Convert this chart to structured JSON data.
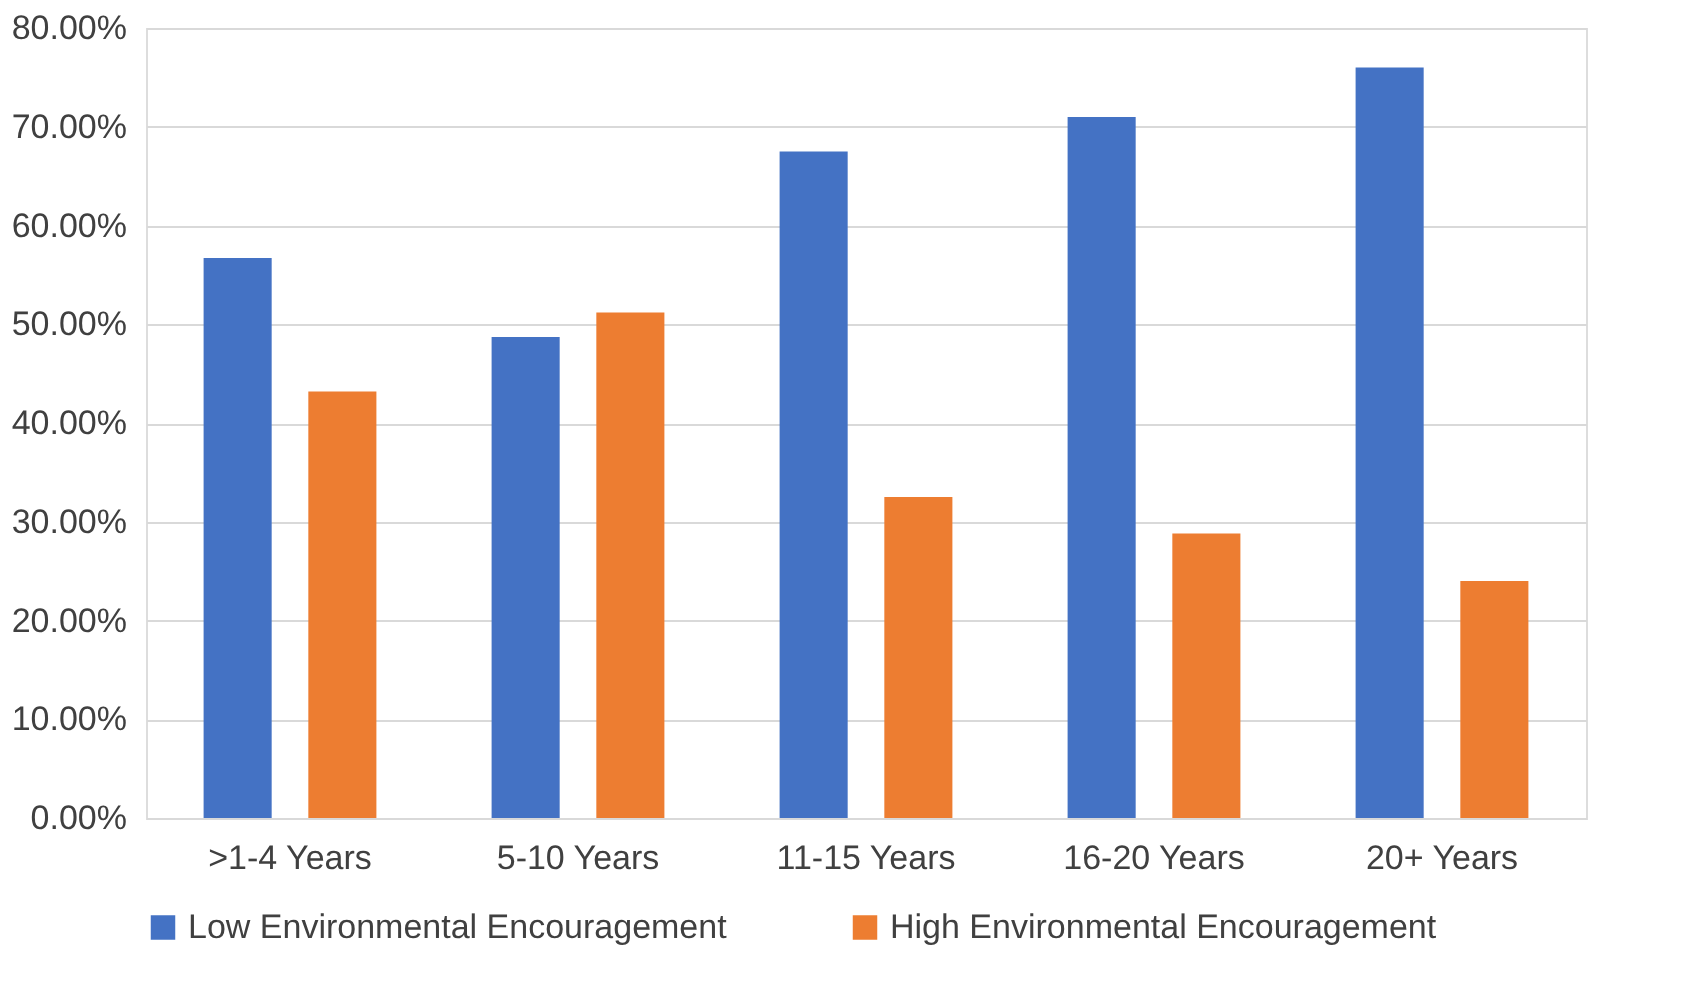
{
  "chart_data": {
    "type": "bar",
    "categories": [
      ">1-4 Years",
      "5-10 Years",
      "11-15 Years",
      "16-20 Years",
      "20+ Years"
    ],
    "series": [
      {
        "name": "Low Environmental Encouragement",
        "color": "#4472c4",
        "values": [
          56.7,
          48.7,
          67.5,
          71.0,
          76.0
        ]
      },
      {
        "name": "High Environmental Encouragement",
        "color": "#ed7d31",
        "values": [
          43.2,
          51.2,
          32.5,
          28.8,
          24.0
        ]
      }
    ],
    "ylim": [
      0,
      80
    ],
    "yticks": [
      {
        "value": 0,
        "label": "0.00%"
      },
      {
        "value": 10,
        "label": "10.00%"
      },
      {
        "value": 20,
        "label": "20.00%"
      },
      {
        "value": 30,
        "label": "30.00%"
      },
      {
        "value": 40,
        "label": "40.00%"
      },
      {
        "value": 50,
        "label": "50.00%"
      },
      {
        "value": 60,
        "label": "60.00%"
      },
      {
        "value": 70,
        "label": "70.00%"
      },
      {
        "value": 80,
        "label": "80.00%"
      }
    ],
    "grid": "y",
    "legend": "bottom"
  }
}
